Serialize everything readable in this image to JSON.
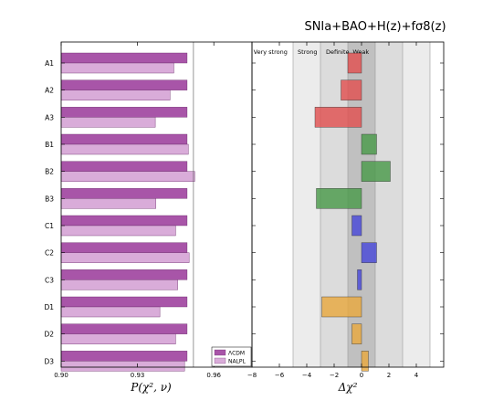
{
  "title": "SNIa+BAO+H(z)+fσ8(z)",
  "chart_data": [
    {
      "type": "bar",
      "orientation": "horizontal",
      "categories": [
        "A1",
        "A2",
        "A3",
        "B1",
        "B2",
        "B3",
        "C1",
        "C2",
        "C3",
        "D1",
        "D2",
        "D3"
      ],
      "series": [
        {
          "name": "ΛCDM",
          "color": "#a855a8",
          "values": [
            0.9495,
            0.9495,
            0.9495,
            0.9495,
            0.9495,
            0.9495,
            0.9495,
            0.9495,
            0.9495,
            0.9495,
            0.9495,
            0.9495
          ]
        },
        {
          "name": "NALPL",
          "color": "#d9acd9",
          "values": [
            0.9443,
            0.9428,
            0.937,
            0.95,
            0.9525,
            0.9372,
            0.945,
            0.9503,
            0.9458,
            0.9388,
            0.945,
            0.9485
          ]
        }
      ],
      "xlabel": "P(χ², ν)",
      "xlim": [
        0.9,
        0.975
      ],
      "xticks": [
        "0.90",
        "0.93",
        "0.96"
      ],
      "ref_line": 0.952,
      "legend_position": "bottom-right"
    },
    {
      "type": "bar",
      "orientation": "horizontal",
      "categories": [
        "A1",
        "A2",
        "A3",
        "B1",
        "B2",
        "B3",
        "C1",
        "C2",
        "C3",
        "D1",
        "D2",
        "D3"
      ],
      "values": [
        -1.0,
        -1.5,
        -3.4,
        1.1,
        2.1,
        -3.3,
        -0.7,
        1.1,
        -0.3,
        -2.9,
        -0.7,
        0.5
      ],
      "colors": [
        "#e05050",
        "#e05050",
        "#e05050",
        "#4a9a4a",
        "#4a9a4a",
        "#4a9a4a",
        "#4848d8",
        "#4848d8",
        "#4848d8",
        "#e8a840",
        "#e8a840",
        "#e8a840"
      ],
      "xlabel": "Δχ²",
      "xlim": [
        -8,
        6
      ],
      "xticks": [
        "−8",
        "−6",
        "−4",
        "−2",
        "0",
        "2",
        "4"
      ],
      "bands": [
        {
          "from": -5,
          "to": 5,
          "fill": "#ececec"
        },
        {
          "from": -3,
          "to": 3,
          "fill": "#dcdcdc"
        },
        {
          "from": -1,
          "to": 1,
          "fill": "#c0c0c0"
        }
      ],
      "region_labels": [
        "Very strong",
        "Strong",
        "Definite",
        "Weak"
      ],
      "vlines": [
        -5,
        -3,
        -1,
        1,
        3,
        5
      ]
    }
  ]
}
